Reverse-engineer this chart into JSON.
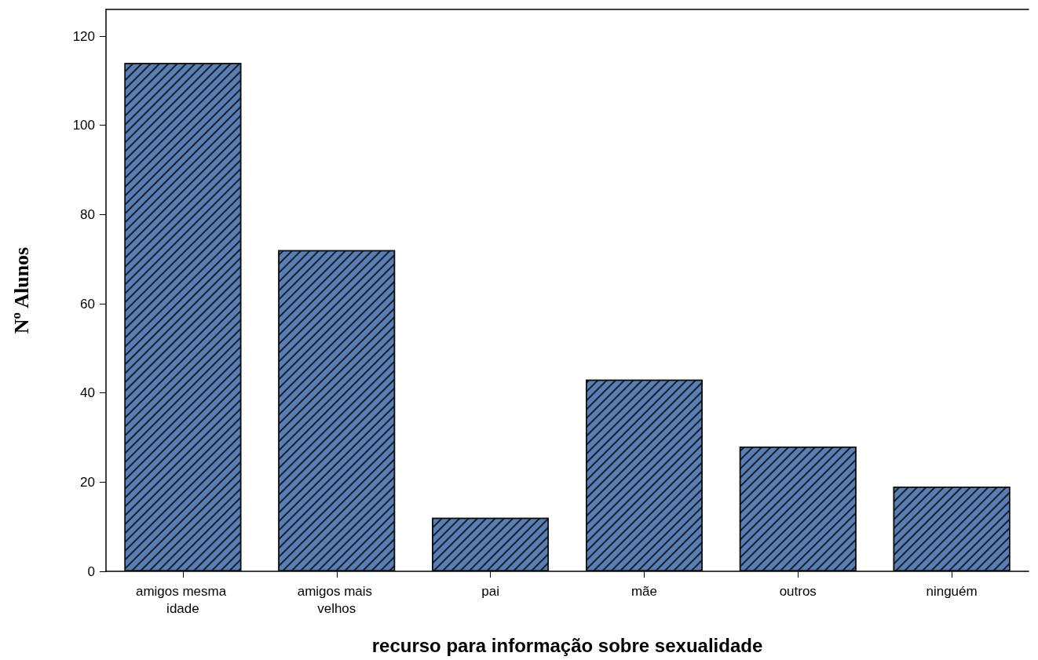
{
  "chart_data": {
    "type": "bar",
    "xlabel": "recurso para informação sobre sexualidade",
    "ylabel": "Nº Alunos",
    "categories": [
      "amigos mesma idade",
      "amigos mais velhos",
      "pai",
      "mãe",
      "outros",
      "ninguém"
    ],
    "values": [
      114,
      72,
      12,
      43,
      28,
      19
    ],
    "color": "#5a7db4",
    "ylim": [
      0,
      126
    ],
    "yticks": [
      0,
      20,
      40,
      60,
      80,
      100,
      120
    ],
    "grid": false
  }
}
